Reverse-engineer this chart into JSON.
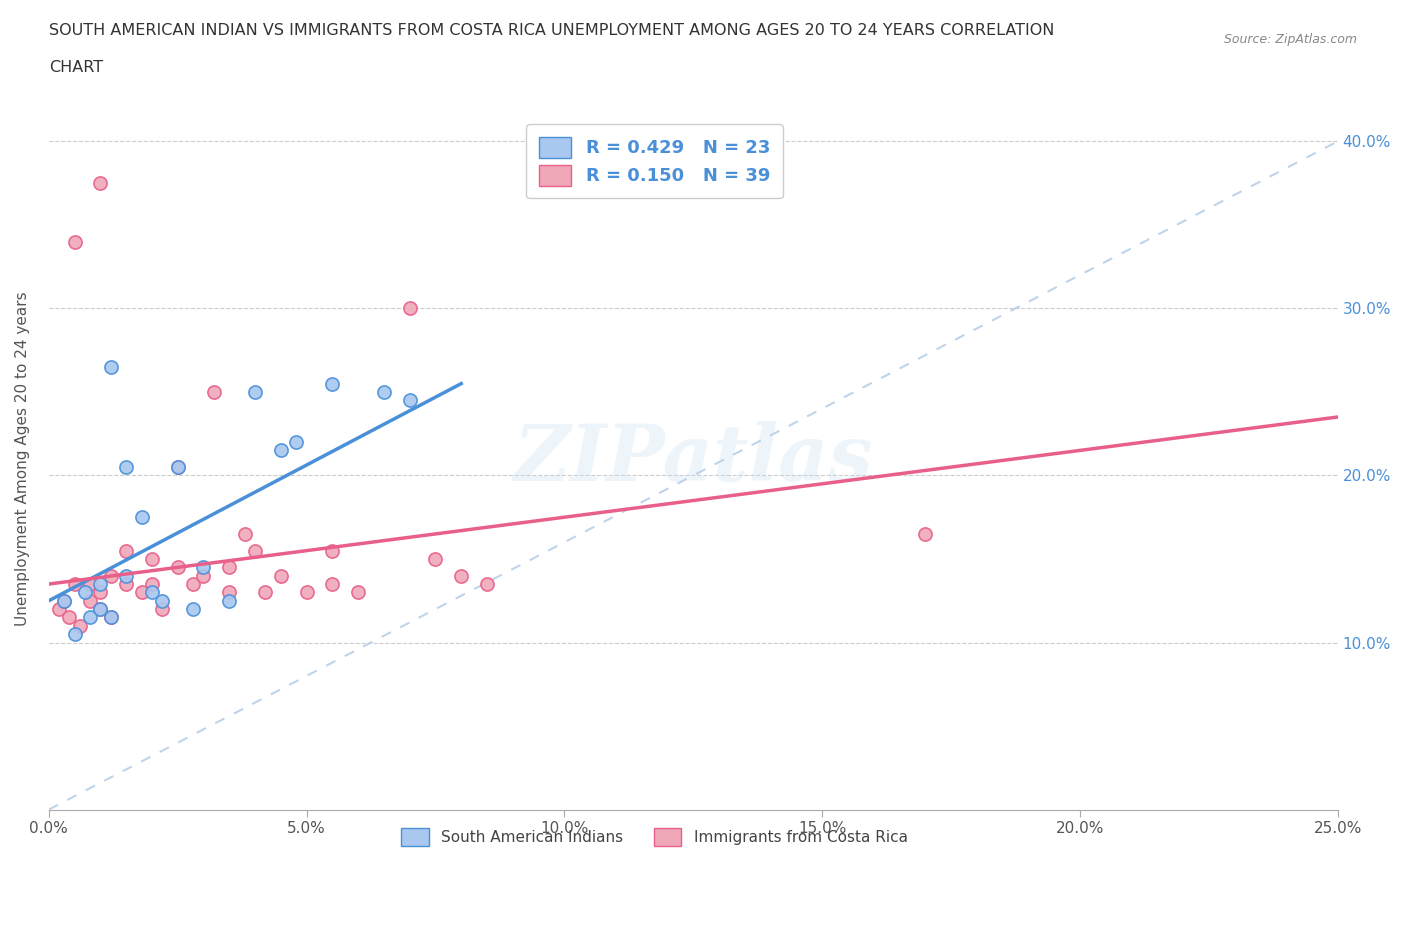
{
  "title_line1": "SOUTH AMERICAN INDIAN VS IMMIGRANTS FROM COSTA RICA UNEMPLOYMENT AMONG AGES 20 TO 24 YEARS CORRELATION",
  "title_line2": "CHART",
  "source": "Source: ZipAtlas.com",
  "xlabel_ticks": [
    "0.0%",
    "5.0%",
    "10.0%",
    "15.0%",
    "20.0%",
    "25.0%"
  ],
  "xlabel_vals": [
    0.0,
    5.0,
    10.0,
    15.0,
    20.0,
    25.0
  ],
  "ylabel_ticks": [
    "10.0%",
    "20.0%",
    "30.0%",
    "40.0%"
  ],
  "ylabel_vals": [
    10.0,
    20.0,
    30.0,
    40.0
  ],
  "ylabel_label": "Unemployment Among Ages 20 to 24 years",
  "blue_R": 0.429,
  "blue_N": 23,
  "pink_R": 0.15,
  "pink_N": 39,
  "blue_color": "#a8c8f0",
  "pink_color": "#f0a8b8",
  "blue_line_color": "#4a90d9",
  "pink_line_color": "#e8608a",
  "ref_line_color": "#b8cfe8",
  "watermark": "ZIPatlas",
  "blue_dots_x": [
    0.3,
    0.5,
    0.7,
    0.8,
    1.0,
    1.0,
    1.2,
    1.5,
    1.5,
    1.8,
    2.0,
    2.2,
    2.5,
    2.8,
    3.0,
    3.5,
    4.0,
    4.5,
    5.5,
    6.5,
    7.0,
    1.2,
    4.8
  ],
  "blue_dots_y": [
    12.5,
    10.5,
    13.0,
    11.5,
    12.0,
    13.5,
    11.5,
    14.0,
    20.5,
    17.5,
    13.0,
    12.5,
    20.5,
    12.0,
    14.5,
    12.5,
    25.0,
    21.5,
    25.5,
    25.0,
    24.5,
    26.5,
    22.0
  ],
  "pink_dots_x": [
    0.2,
    0.4,
    0.5,
    0.6,
    0.8,
    0.8,
    1.0,
    1.0,
    1.2,
    1.2,
    1.5,
    1.5,
    1.8,
    2.0,
    2.0,
    2.2,
    2.5,
    2.8,
    3.0,
    3.2,
    3.5,
    3.5,
    4.0,
    4.2,
    4.5,
    5.0,
    5.5,
    6.0,
    7.0,
    8.0,
    17.0,
    0.5,
    1.0,
    2.5,
    3.8,
    5.5,
    7.5,
    8.5,
    0.3
  ],
  "pink_dots_y": [
    12.0,
    11.5,
    13.5,
    11.0,
    12.5,
    13.5,
    13.0,
    12.0,
    11.5,
    14.0,
    13.5,
    15.5,
    13.0,
    13.5,
    15.0,
    12.0,
    14.5,
    13.5,
    14.0,
    25.0,
    13.0,
    14.5,
    15.5,
    13.0,
    14.0,
    13.0,
    13.5,
    13.0,
    30.0,
    14.0,
    16.5,
    34.0,
    37.5,
    20.5,
    16.5,
    15.5,
    15.0,
    13.5,
    12.5
  ],
  "xmin": 0.0,
  "xmax": 25.0,
  "ymin": 0.0,
  "ymax": 42.0,
  "blue_line_x0": 0.0,
  "blue_line_y0": 12.5,
  "blue_line_x1": 8.0,
  "blue_line_y1": 25.5,
  "pink_line_x0": 0.0,
  "pink_line_y0": 13.5,
  "pink_line_x1": 25.0,
  "pink_line_y1": 23.5
}
